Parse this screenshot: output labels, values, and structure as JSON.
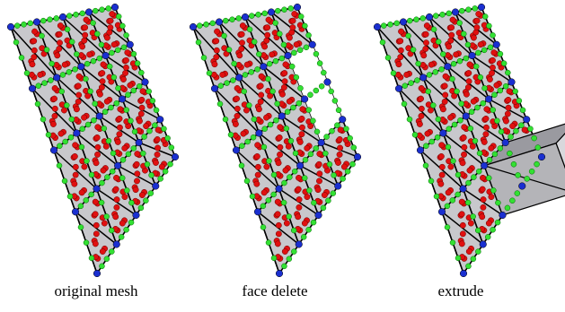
{
  "captions": [
    "original mesh",
    "face delete",
    "extrude"
  ]
}
